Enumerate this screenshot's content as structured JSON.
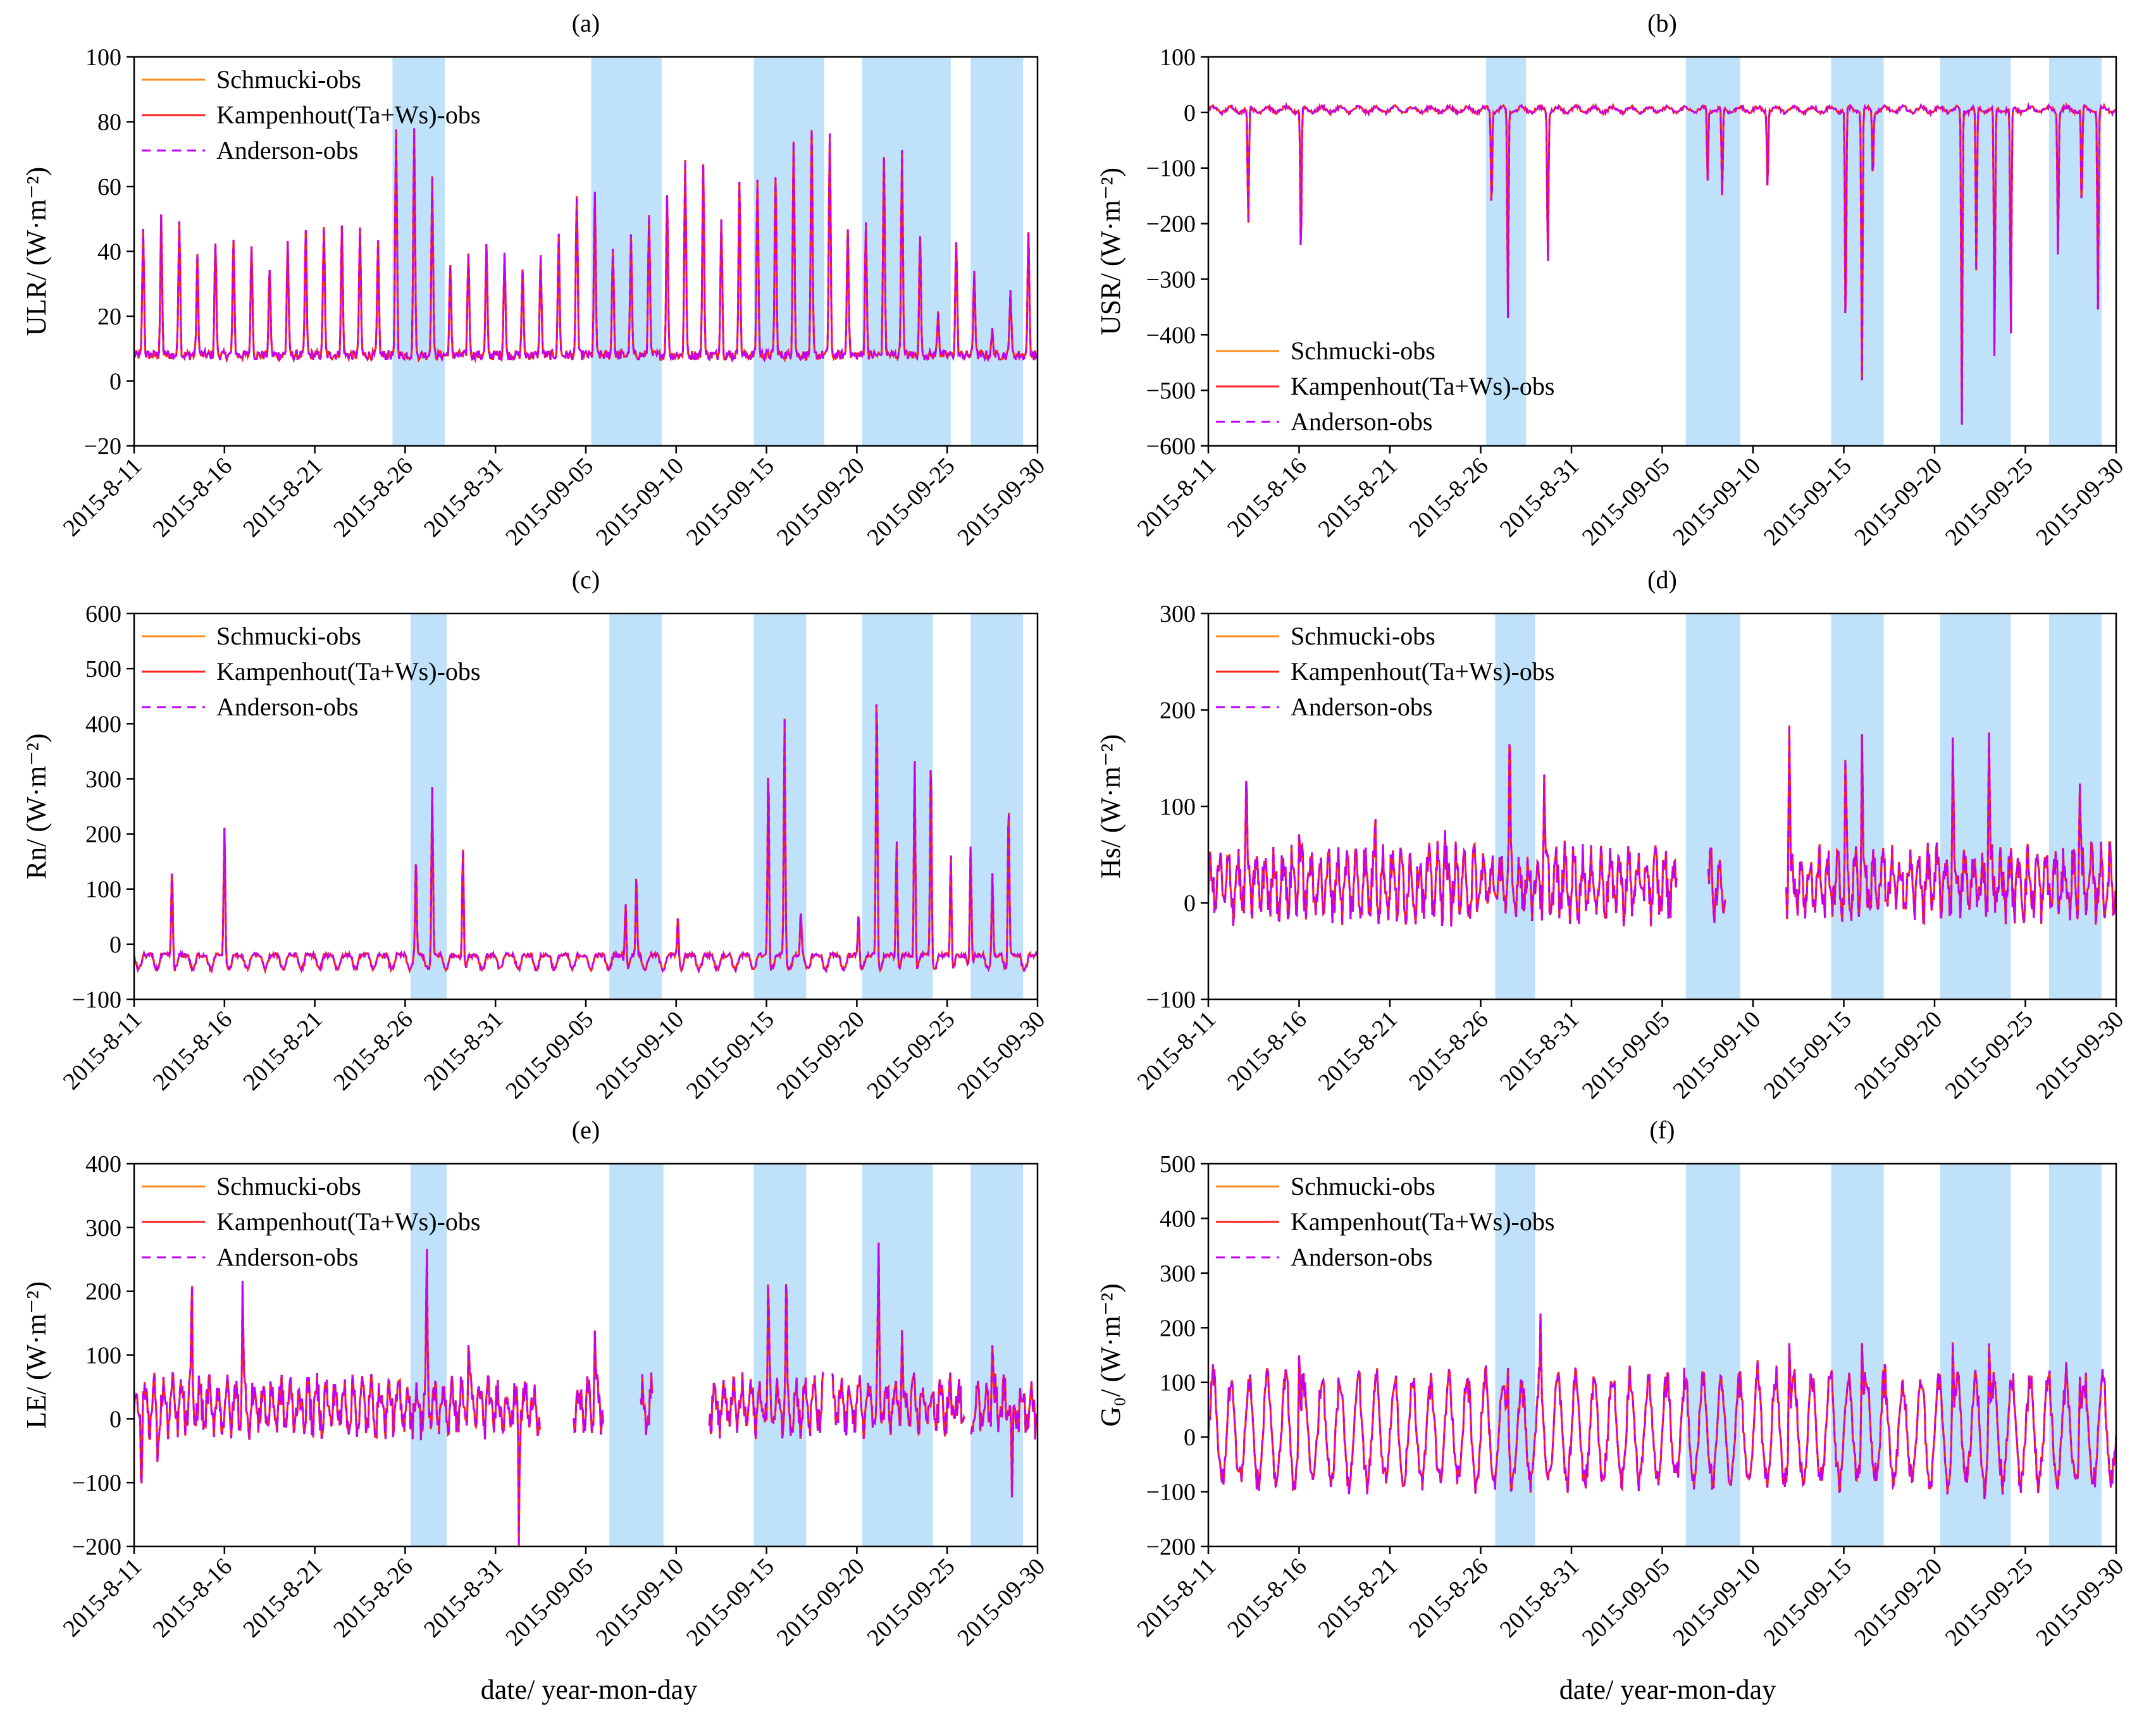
{
  "figure": {
    "xlabel": "date/ year-mon-day",
    "dates": [
      "2015-8-11",
      "2015-8-16",
      "2015-8-21",
      "2015-8-26",
      "2015-8-31",
      "2015-09-05",
      "2015-09-10",
      "2015-09-15",
      "2015-09-20",
      "2015-09-25",
      "2015-09-30"
    ],
    "legend": [
      "Schmucki-obs",
      "Kampenhout(Ta+Ws)-obs",
      "Anderson-obs"
    ],
    "colors": {
      "schmucki": "#ff8c1a",
      "kampenhout": "#ff2020",
      "anderson": "#c000ff",
      "shade": "#bfe2fa"
    }
  },
  "chart_data": [
    {
      "type": "line",
      "label": "(a)",
      "title": "(a)",
      "ylabel": "ULR/ (W·m⁻²)",
      "ylim": [
        -20,
        100
      ],
      "yticks": [
        -20,
        0,
        20,
        40,
        60,
        80,
        100
      ],
      "xlim": [
        0,
        50
      ],
      "legend_position": "top-left",
      "shaded_days": [
        [
          14.3,
          17.2
        ],
        [
          25.3,
          29.2
        ],
        [
          34.3,
          38.2
        ],
        [
          40.3,
          45.2
        ],
        [
          46.3,
          49.2
        ]
      ],
      "peaks": [
        [
          0,
          30
        ],
        [
          1,
          46
        ],
        [
          2,
          50
        ],
        [
          3,
          38
        ],
        [
          4,
          28
        ],
        [
          5,
          43
        ],
        [
          6,
          42
        ],
        [
          7,
          35
        ],
        [
          8,
          26
        ],
        [
          9,
          42
        ],
        [
          10,
          46
        ],
        [
          11,
          48
        ],
        [
          12,
          46
        ],
        [
          13,
          42
        ],
        [
          14,
          42
        ],
        [
          15,
          78
        ],
        [
          16,
          62
        ],
        [
          17,
          35
        ],
        [
          18,
          30
        ],
        [
          19,
          40
        ],
        [
          20,
          40
        ],
        [
          21,
          35
        ],
        [
          22,
          30
        ],
        [
          23,
          38
        ],
        [
          24,
          40
        ],
        [
          25,
          58
        ],
        [
          26,
          42
        ],
        [
          27,
          42
        ],
        [
          28,
          38
        ],
        [
          29,
          52
        ],
        [
          30,
          58
        ],
        [
          31,
          67
        ],
        [
          32,
          50
        ],
        [
          33,
          48
        ],
        [
          34,
          62
        ],
        [
          35,
          63
        ],
        [
          36,
          50
        ],
        [
          37,
          75
        ],
        [
          38,
          76
        ],
        [
          39,
          48
        ],
        [
          40,
          40
        ],
        [
          41,
          48
        ],
        [
          42,
          70
        ],
        [
          43,
          45
        ]
      ],
      "baseline": 8
    },
    {
      "type": "line",
      "label": "(b)",
      "title": "(b)",
      "ylabel": "USR/ (W·m⁻²)",
      "ylim": [
        -600,
        100
      ],
      "yticks": [
        -600,
        -500,
        -400,
        -300,
        -200,
        -100,
        0,
        100
      ],
      "xlim": [
        0,
        50
      ],
      "legend_position": "bottom-left",
      "shaded_days": [
        [
          15.3,
          17.5
        ],
        [
          26.3,
          29.3
        ],
        [
          34.3,
          37.2
        ],
        [
          40.3,
          44.2
        ],
        [
          46.3,
          49.2
        ]
      ],
      "dips": [
        [
          2.2,
          -215
        ],
        [
          5.1,
          -272
        ],
        [
          15.6,
          -178
        ],
        [
          16.5,
          -375
        ],
        [
          18.7,
          -275
        ],
        [
          27.5,
          -128
        ],
        [
          28.3,
          -165
        ],
        [
          30.8,
          -138
        ],
        [
          35.1,
          -410
        ],
        [
          36.0,
          -485
        ],
        [
          36.6,
          -125
        ],
        [
          41.5,
          -565
        ],
        [
          42.3,
          -300
        ],
        [
          43.3,
          -460
        ],
        [
          44.2,
          -420
        ],
        [
          46.8,
          -262
        ],
        [
          48.1,
          -180
        ],
        [
          49.0,
          -360
        ]
      ],
      "baseline": 0
    },
    {
      "type": "line",
      "label": "(c)",
      "title": "(c)",
      "ylabel": "Rn/ (W·m⁻²)",
      "ylim": [
        -100,
        600
      ],
      "yticks": [
        -100,
        0,
        100,
        200,
        300,
        400,
        500,
        600
      ],
      "xlim": [
        0,
        50
      ],
      "legend_position": "top-left",
      "shaded_days": [
        [
          15.3,
          17.3
        ],
        [
          26.3,
          29.2
        ],
        [
          34.3,
          37.2
        ],
        [
          40.3,
          44.2
        ],
        [
          46.3,
          49.2
        ]
      ],
      "peaks": [
        [
          2.1,
          170
        ],
        [
          5.0,
          235
        ],
        [
          15.6,
          175
        ],
        [
          16.5,
          305
        ],
        [
          18.2,
          220
        ],
        [
          27.2,
          120
        ],
        [
          27.8,
          145
        ],
        [
          30.1,
          80
        ],
        [
          35.1,
          355
        ],
        [
          36.0,
          430
        ],
        [
          36.9,
          85
        ],
        [
          40.1,
          90
        ],
        [
          41.1,
          500
        ],
        [
          42.2,
          230
        ],
        [
          43.2,
          385
        ],
        [
          44.1,
          370
        ],
        [
          45.2,
          210
        ],
        [
          46.3,
          225
        ],
        [
          47.5,
          150
        ],
        [
          48.4,
          295
        ]
      ],
      "baseline": -20
    },
    {
      "type": "line",
      "label": "(d)",
      "title": "(d)",
      "ylabel": "Hs/ (W·m⁻²)",
      "ylim": [
        -100,
        300
      ],
      "yticks": [
        -100,
        0,
        100,
        200,
        300
      ],
      "xlim": [
        0,
        50
      ],
      "legend_position": "top-left",
      "shaded_days": [
        [
          15.8,
          18.0
        ],
        [
          26.3,
          29.3
        ],
        [
          34.3,
          37.2
        ],
        [
          40.3,
          44.2
        ],
        [
          46.3,
          49.2
        ]
      ],
      "peaks": [
        [
          2.1,
          130
        ],
        [
          5.0,
          95
        ],
        [
          9.2,
          110
        ],
        [
          13.0,
          95
        ],
        [
          16.6,
          160
        ],
        [
          18.5,
          140
        ],
        [
          32.0,
          228
        ],
        [
          35.1,
          145
        ],
        [
          36.0,
          205
        ],
        [
          41.0,
          195
        ],
        [
          43.0,
          220
        ],
        [
          48.0,
          148
        ]
      ],
      "gaps": [
        [
          25.8,
          27.5
        ],
        [
          28.5,
          31.8
        ]
      ],
      "baseline": 20
    },
    {
      "type": "line",
      "label": "(e)",
      "title": "(e)",
      "ylabel": "LE/ (W·m⁻²)",
      "ylim": [
        -200,
        400
      ],
      "yticks": [
        -200,
        -100,
        0,
        100,
        200,
        300,
        400
      ],
      "xlim": [
        0,
        50
      ],
      "legend_position": "top-left",
      "shaded_days": [
        [
          15.3,
          17.3
        ],
        [
          26.3,
          29.3
        ],
        [
          34.3,
          37.2
        ],
        [
          40.3,
          44.2
        ],
        [
          46.3,
          49.2
        ]
      ],
      "peaks": [
        [
          3.2,
          200
        ],
        [
          6.0,
          225
        ],
        [
          16.2,
          265
        ],
        [
          18.5,
          140
        ],
        [
          25.5,
          180
        ],
        [
          35.1,
          235
        ],
        [
          36.1,
          240
        ],
        [
          41.2,
          285
        ],
        [
          42.5,
          145
        ],
        [
          47.5,
          150
        ]
      ],
      "dips": [
        [
          0.4,
          -110
        ],
        [
          1.3,
          -100
        ],
        [
          21.3,
          -200
        ],
        [
          48.6,
          -165
        ]
      ],
      "gaps": [
        [
          22.5,
          24.3
        ],
        [
          26.0,
          28.0
        ],
        [
          28.7,
          31.8
        ],
        [
          38.2,
          38.6
        ],
        [
          46.0,
          46.3
        ]
      ],
      "baseline": 20
    },
    {
      "type": "line",
      "label": "(f)",
      "title": "(f)",
      "ylabel": "G₀/ (W·m⁻²)",
      "ylim": [
        -200,
        500
      ],
      "yticks": [
        -200,
        -100,
        0,
        100,
        200,
        300,
        400,
        500
      ],
      "xlim": [
        0,
        50
      ],
      "legend_position": "top-left",
      "shaded_days": [
        [
          15.8,
          18.0
        ],
        [
          26.3,
          29.3
        ],
        [
          34.3,
          37.2
        ],
        [
          40.3,
          44.2
        ],
        [
          46.3,
          49.2
        ]
      ],
      "peaks": [
        [
          5.0,
          265
        ],
        [
          16.5,
          240
        ],
        [
          18.3,
          235
        ],
        [
          32.0,
          300
        ],
        [
          36.0,
          305
        ],
        [
          41.0,
          290
        ],
        [
          43.0,
          295
        ],
        [
          48.0,
          220
        ]
      ],
      "baseline": 0,
      "amplitude": [
        130,
        -100
      ]
    }
  ]
}
